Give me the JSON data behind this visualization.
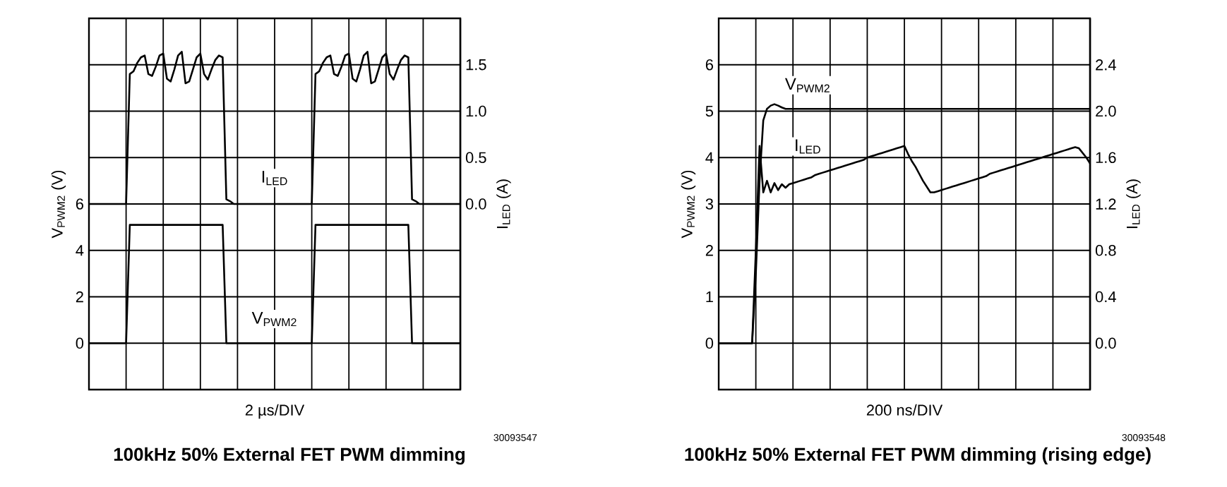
{
  "chart_data": [
    {
      "type": "line",
      "title": "100kHz 50% External FET PWM dimming",
      "xlabel": "2 µs/DIV",
      "ylabel": "V$_{PWM2}$ (V)",
      "y2label": "I$_{LED}$ (A)",
      "annotations": [
        "30093547"
      ],
      "categories": [
        null,
        null,
        null,
        null,
        null,
        null,
        null,
        null,
        null,
        null,
        null,
        null,
        null,
        null,
        null,
        null,
        null,
        null,
        null,
        null,
        null,
        null,
        null,
        null,
        null,
        null,
        null,
        null,
        null,
        null,
        null,
        null,
        null,
        null,
        null,
        null,
        null,
        null,
        null,
        null,
        null,
        null,
        null,
        null,
        null,
        null,
        null,
        null,
        null,
        null,
        null,
        null,
        null,
        null,
        null,
        null,
        null,
        null,
        null,
        null,
        null,
        null,
        null,
        null,
        null,
        null,
        null,
        null,
        null,
        null,
        null,
        null,
        null,
        null,
        null,
        null,
        null,
        null,
        null,
        null,
        null,
        null,
        null,
        null,
        null,
        null,
        null,
        null,
        null,
        null,
        null,
        null,
        null,
        null,
        null,
        null,
        null,
        null,
        null,
        null,
        null
      ],
      "series": [
        {
          "name": "V$_{PWM2}$",
          "color": "#000000",
          "values": [
            0,
            0,
            0,
            0,
            0,
            0,
            0,
            0,
            0,
            0,
            0,
            5.1,
            5.1,
            5.1,
            5.1,
            5.1,
            5.1,
            5.1,
            5.1,
            5.1,
            5.1,
            5.1,
            5.1,
            5.1,
            5.1,
            5.1,
            5.1,
            5.1,
            5.1,
            5.1,
            5.1,
            5.1,
            5.1,
            5.1,
            5.1,
            5.1,
            5.1,
            0,
            0,
            0,
            0,
            0,
            0,
            0,
            0,
            0,
            0,
            0,
            0,
            0,
            0,
            0,
            0,
            0,
            0,
            0,
            0,
            0,
            0,
            0,
            0,
            5.1,
            5.1,
            5.1,
            5.1,
            5.1,
            5.1,
            5.1,
            5.1,
            5.1,
            5.1,
            5.1,
            5.1,
            5.1,
            5.1,
            5.1,
            5.1,
            5.1,
            5.1,
            5.1,
            5.1,
            5.1,
            5.1,
            5.1,
            5.1,
            5.1,
            5.1,
            0,
            0,
            0,
            0,
            0,
            0,
            0,
            0,
            0,
            0,
            0,
            0,
            0,
            0
          ]
        },
        {
          "name": "I$_{LED}$",
          "color": "#000000",
          "axis": "y2",
          "values": [
            0,
            0,
            0,
            0,
            0,
            0,
            0,
            0,
            0,
            0,
            0,
            1.4,
            1.43,
            1.52,
            1.58,
            1.6,
            1.4,
            1.38,
            1.48,
            1.6,
            1.62,
            1.35,
            1.32,
            1.45,
            1.6,
            1.64,
            1.3,
            1.32,
            1.45,
            1.58,
            1.62,
            1.4,
            1.34,
            1.45,
            1.55,
            1.6,
            1.58,
            0.05,
            0.03,
            0,
            0,
            0,
            0,
            0,
            0,
            0,
            0,
            0,
            0,
            0,
            0,
            0,
            0,
            0,
            0,
            0,
            0,
            0,
            0,
            0,
            0,
            1.4,
            1.43,
            1.52,
            1.58,
            1.6,
            1.4,
            1.38,
            1.48,
            1.6,
            1.62,
            1.35,
            1.32,
            1.45,
            1.6,
            1.64,
            1.3,
            1.32,
            1.45,
            1.58,
            1.62,
            1.4,
            1.34,
            1.45,
            1.55,
            1.6,
            1.58,
            0.05,
            0.03,
            0,
            0,
            0,
            0,
            0,
            0,
            0,
            0,
            0,
            0,
            0,
            0
          ]
        }
      ],
      "ylim": [
        -2,
        14
      ],
      "yticks": [
        0,
        2,
        4,
        6,
        {
          "value": 8,
          "label": null
        },
        {
          "value": 10,
          "label": null
        },
        {
          "value": 12,
          "label": null
        }
      ],
      "y2lim": [
        -2,
        2
      ],
      "y2ticks": [
        {
          "value": 0,
          "label": "0.0"
        },
        0.5,
        {
          "value": 1,
          "label": "1.0"
        },
        1.5
      ],
      "grid": true
    },
    {
      "type": "line",
      "title": "100kHz 50% External FET PWM dimming (rising edge)",
      "xlabel": "200 ns/DIV",
      "ylabel": "V$_{PWM2}$ (V)",
      "y2label": "I$_{LED}$ (A)",
      "annotations": [
        "30093548"
      ],
      "categories": [
        null,
        null,
        null,
        null,
        null,
        null,
        null,
        null,
        null,
        null,
        null,
        null,
        null,
        null,
        null,
        null,
        null,
        null,
        null,
        null,
        null,
        null,
        null,
        null,
        null,
        null,
        null,
        null,
        null,
        null,
        null,
        null,
        null,
        null,
        null,
        null,
        null,
        null,
        null,
        null,
        null,
        null,
        null,
        null,
        null,
        null,
        null,
        null,
        null,
        null,
        null,
        null,
        null,
        null,
        null,
        null,
        null,
        null,
        null,
        null,
        null,
        null,
        null,
        null,
        null,
        null,
        null,
        null,
        null,
        null,
        null,
        null,
        null,
        null,
        null,
        null,
        null,
        null,
        null,
        null,
        null,
        null,
        null,
        null,
        null,
        null,
        null,
        null,
        null,
        null,
        null,
        null,
        null,
        null,
        null,
        null,
        null,
        null,
        null,
        null,
        null
      ],
      "series": [
        {
          "name": "V$_{PWM2}$",
          "color": "#000000",
          "values": [
            0,
            0,
            0,
            0,
            0,
            0,
            0,
            0,
            0,
            0,
            1.5,
            3.5,
            4.8,
            5.05,
            5.12,
            5.15,
            5.12,
            5.08,
            5.05,
            5.05,
            5.05,
            5.05,
            5.05,
            5.05,
            5.05,
            5.05,
            5.05,
            5.05,
            5.05,
            5.05,
            5.05,
            5.05,
            5.05,
            5.05,
            5.05,
            5.05,
            5.05,
            5.05,
            5.05,
            5.05,
            5.05,
            5.05,
            5.05,
            5.05,
            5.05,
            5.05,
            5.05,
            5.05,
            5.05,
            5.05,
            5.05,
            5.05,
            5.05,
            5.05,
            5.05,
            5.05,
            5.05,
            5.05,
            5.05,
            5.05,
            5.05,
            5.05,
            5.05,
            5.05,
            5.05,
            5.05,
            5.05,
            5.05,
            5.05,
            5.05,
            5.05,
            5.05,
            5.05,
            5.05,
            5.05,
            5.05,
            5.05,
            5.05,
            5.05,
            5.05,
            5.05,
            5.05,
            5.05,
            5.05,
            5.05,
            5.05,
            5.05,
            5.05,
            5.05,
            5.05,
            5.05,
            5.05,
            5.05,
            5.05,
            5.05,
            5.05,
            5.05,
            5.05,
            5.05,
            5.05,
            5.05
          ]
        },
        {
          "name": "I$_{LED}$",
          "color": "#000000",
          "axis": "y2",
          "values": [
            0,
            0,
            0,
            0,
            0,
            0,
            0,
            0,
            0,
            0,
            0.8,
            1.7,
            1.3,
            1.4,
            1.3,
            1.38,
            1.32,
            1.37,
            1.34,
            1.37,
            1.38,
            1.39,
            1.4,
            1.41,
            1.42,
            1.43,
            1.45,
            1.46,
            1.47,
            1.48,
            1.49,
            1.5,
            1.51,
            1.52,
            1.53,
            1.54,
            1.55,
            1.56,
            1.57,
            1.58,
            1.6,
            1.61,
            1.62,
            1.63,
            1.64,
            1.65,
            1.66,
            1.67,
            1.68,
            1.69,
            1.7,
            1.63,
            1.57,
            1.52,
            1.46,
            1.4,
            1.35,
            1.3,
            1.3,
            1.31,
            1.32,
            1.33,
            1.34,
            1.35,
            1.36,
            1.37,
            1.38,
            1.39,
            1.4,
            1.41,
            1.42,
            1.43,
            1.44,
            1.46,
            1.47,
            1.48,
            1.49,
            1.5,
            1.51,
            1.52,
            1.53,
            1.54,
            1.55,
            1.56,
            1.57,
            1.58,
            1.59,
            1.6,
            1.61,
            1.62,
            1.63,
            1.64,
            1.65,
            1.66,
            1.67,
            1.68,
            1.69,
            1.68,
            1.64,
            1.6,
            1.55
          ]
        }
      ],
      "ylim": [
        -1,
        7
      ],
      "yticks": [
        0,
        1,
        2,
        3,
        4,
        5,
        6
      ],
      "y2lim": [
        -0.4,
        2.8
      ],
      "y2ticks": [
        {
          "value": 0,
          "label": "0.0"
        },
        0.4,
        0.8,
        1.2,
        1.6,
        {
          "value": 2,
          "label": "2.0"
        },
        2.4
      ],
      "grid": true
    }
  ]
}
